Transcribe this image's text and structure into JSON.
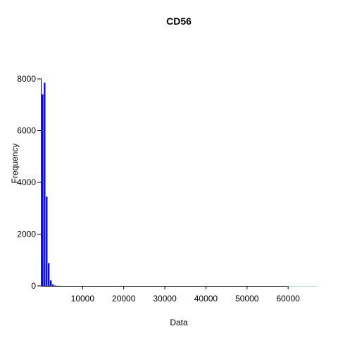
{
  "chart_data": {
    "type": "bar",
    "title": "CD56",
    "xlabel": "Data",
    "ylabel": "Frequency",
    "bar_color": "#0000ff",
    "bin_width": 500,
    "bins": [
      {
        "start": 0,
        "end": 500,
        "value": 7400
      },
      {
        "start": 500,
        "end": 1000,
        "value": 7850
      },
      {
        "start": 1000,
        "end": 1500,
        "value": 3450
      },
      {
        "start": 1500,
        "end": 2000,
        "value": 880
      },
      {
        "start": 2000,
        "end": 2500,
        "value": 210
      },
      {
        "start": 2500,
        "end": 3000,
        "value": 60
      },
      {
        "start": 3000,
        "end": 3500,
        "value": 15
      },
      {
        "start": 3500,
        "end": 4000,
        "value": 6
      },
      {
        "start": 4000,
        "end": 4500,
        "value": 3
      },
      {
        "start": 4500,
        "end": 5000,
        "value": 2
      }
    ],
    "xlim": [
      0,
      67000
    ],
    "ylim": [
      0,
      8000
    ],
    "xticks": [
      10000,
      20000,
      30000,
      40000,
      50000,
      60000
    ],
    "xtick_labels": [
      "10000",
      "20000",
      "30000",
      "40000",
      "50000",
      "60000"
    ],
    "yticks": [
      0,
      2000,
      4000,
      6000,
      8000
    ],
    "ytick_labels": [
      "0",
      "2000",
      "4000",
      "6000",
      "8000"
    ]
  }
}
